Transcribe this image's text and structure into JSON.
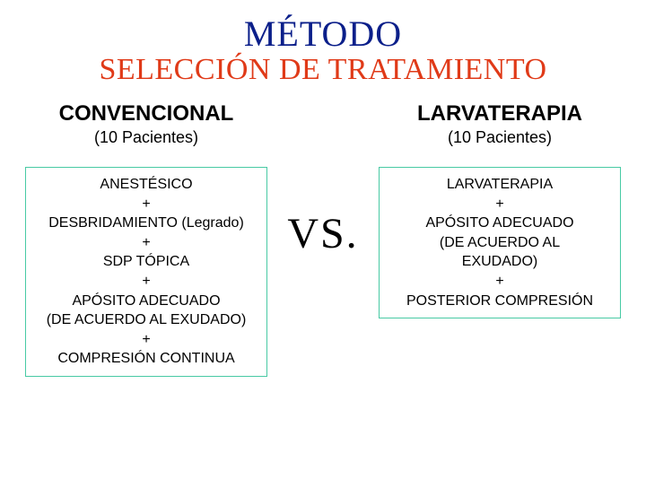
{
  "colors": {
    "title_main": "#0b1f8a",
    "title_sub": "#e03a18",
    "heading": "#000000",
    "subheading": "#000000",
    "box_text": "#000000",
    "box_border": "#48caa4",
    "vs": "#000000",
    "background": "#ffffff"
  },
  "fontsizes": {
    "title_main": 40,
    "title_sub": 34,
    "heading": 24,
    "subheading": 18,
    "box_text": 16,
    "vs": 48
  },
  "title_main": "MÉTODO",
  "title_sub": "SELECCIÓN DE TRATAMIENTO",
  "left": {
    "heading": "CONVENCIONAL",
    "subheading": "(10 Pacientes)",
    "box_text": "ANESTÉSICO\n+\nDESBRIDAMIENTO (Legrado)\n+\nSDP TÓPICA\n+\nAPÓSITO ADECUADO\n(DE ACUERDO AL EXUDADO)\n+\nCOMPRESIÓN CONTINUA"
  },
  "vs": "VS.",
  "right": {
    "heading": "LARVATERAPIA",
    "subheading": "(10 Pacientes)",
    "box_text": "LARVATERAPIA\n+\nAPÓSITO ADECUADO\n(DE ACUERDO AL\nEXUDADO)\n+\nPOSTERIOR COMPRESIÓN"
  }
}
